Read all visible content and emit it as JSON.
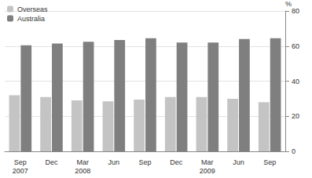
{
  "chart_data": {
    "type": "bar",
    "categories": [
      "Sep\n2007",
      "Dec",
      "Mar\n2008",
      "Jun",
      "Sep",
      "Dec",
      "Mar\n2009",
      "Jun",
      "Sep"
    ],
    "series": [
      {
        "name": "Overseas",
        "color": "#c4c4c4",
        "values": [
          32,
          31,
          29,
          28.5,
          29.5,
          31,
          31,
          30,
          28
        ]
      },
      {
        "name": "Australia",
        "color": "#7f7f7f",
        "values": [
          60.5,
          61.5,
          62.5,
          63.5,
          64.5,
          62,
          62,
          64,
          64.5
        ]
      }
    ],
    "y_label": "%",
    "ylim": [
      0,
      80
    ],
    "yticks": [
      0,
      20,
      40,
      60,
      80
    ],
    "grid": true,
    "legend": "top-left"
  }
}
